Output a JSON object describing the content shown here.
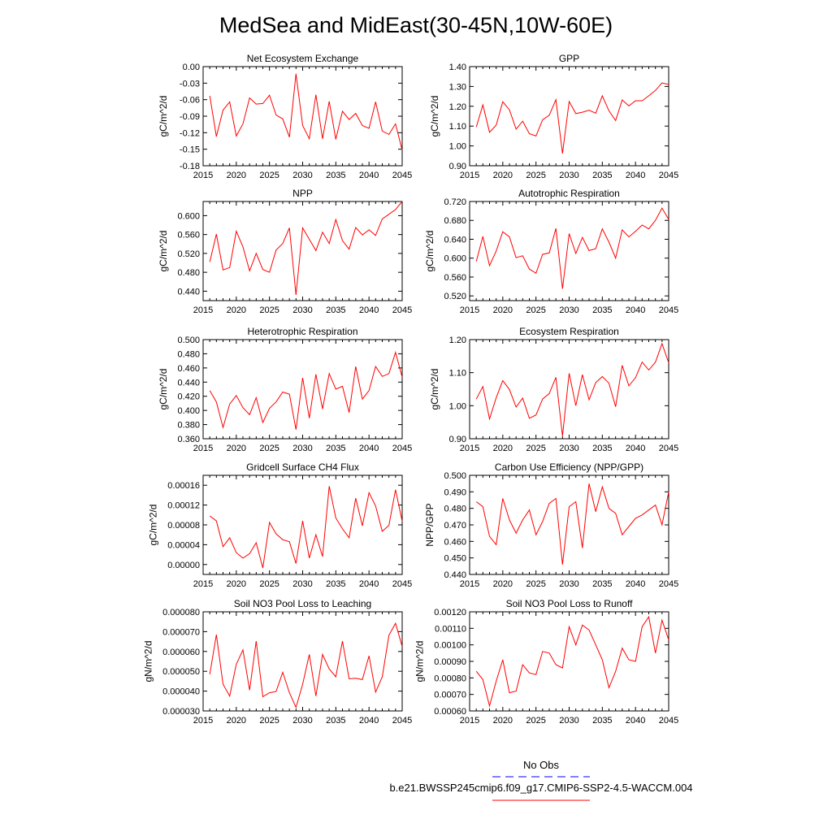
{
  "figure": {
    "title": "MedSea and MidEast(30-45N,10W-60E)"
  },
  "legend": {
    "entries": [
      {
        "label": "No Obs",
        "color": "#0000ff",
        "dashed": true
      },
      {
        "label": "b.e21.BWSSP245cmip6.f09_g17.CMIP6-SSP2-4.5-WACCM.004",
        "color": "#ff0000",
        "dashed": false
      }
    ]
  },
  "chart_data": [
    {
      "type": "line",
      "title": "Net Ecosystem Exchange",
      "xlabel": "",
      "ylabel": "gC/m^2/d",
      "xlim": [
        2015,
        2045
      ],
      "ylim": [
        -0.18,
        0.0
      ],
      "xticks": [
        "2015",
        "2020",
        "2025",
        "2030",
        "2035",
        "2040",
        "2045"
      ],
      "yticks": [
        "-0.18",
        "-0.15",
        "-0.12",
        "-0.09",
        "-0.06",
        "-0.03",
        "0.00"
      ],
      "x": [
        2016,
        2017,
        2018,
        2019,
        2020,
        2021,
        2022,
        2023,
        2024,
        2025,
        2026,
        2027,
        2028,
        2029,
        2030,
        2031,
        2032,
        2033,
        2034,
        2035,
        2036,
        2037,
        2038,
        2039,
        2040,
        2041,
        2042,
        2043,
        2044,
        2045
      ],
      "series": [
        {
          "color": "#ff0000",
          "values": [
            -0.053,
            -0.127,
            -0.079,
            -0.064,
            -0.126,
            -0.104,
            -0.057,
            -0.068,
            -0.067,
            -0.052,
            -0.088,
            -0.095,
            -0.128,
            -0.013,
            -0.107,
            -0.131,
            -0.051,
            -0.131,
            -0.063,
            -0.132,
            -0.081,
            -0.096,
            -0.085,
            -0.107,
            -0.112,
            -0.064,
            -0.117,
            -0.123,
            -0.104,
            -0.152
          ]
        }
      ]
    },
    {
      "type": "line",
      "title": "GPP",
      "xlabel": "",
      "ylabel": "gC/m^2/d",
      "xlim": [
        2015,
        2045
      ],
      "ylim": [
        0.9,
        1.4
      ],
      "xticks": [
        "2015",
        "2020",
        "2025",
        "2030",
        "2035",
        "2040",
        "2045"
      ],
      "yticks": [
        "0.90",
        "1.00",
        "1.10",
        "1.20",
        "1.30",
        "1.40"
      ],
      "x": [
        2016,
        2017,
        2018,
        2019,
        2020,
        2021,
        2022,
        2023,
        2024,
        2025,
        2026,
        2027,
        2028,
        2029,
        2030,
        2031,
        2032,
        2033,
        2034,
        2035,
        2036,
        2037,
        2038,
        2039,
        2040,
        2041,
        2042,
        2043,
        2044,
        2045
      ],
      "series": [
        {
          "color": "#ff0000",
          "values": [
            1.095,
            1.207,
            1.069,
            1.105,
            1.223,
            1.182,
            1.085,
            1.125,
            1.062,
            1.05,
            1.132,
            1.155,
            1.233,
            0.962,
            1.224,
            1.163,
            1.17,
            1.18,
            1.165,
            1.253,
            1.177,
            1.128,
            1.232,
            1.202,
            1.228,
            1.228,
            1.253,
            1.28,
            1.318,
            1.31
          ]
        }
      ]
    },
    {
      "type": "line",
      "title": "NPP",
      "xlabel": "",
      "ylabel": "gC/m^2/d",
      "xlim": [
        2015,
        2045
      ],
      "ylim": [
        0.42,
        0.63
      ],
      "xticks": [
        "2015",
        "2020",
        "2025",
        "2030",
        "2035",
        "2040",
        "2045"
      ],
      "yticks": [
        "0.440",
        "0.480",
        "0.520",
        "0.560",
        "0.600"
      ],
      "x": [
        2016,
        2017,
        2018,
        2019,
        2020,
        2021,
        2022,
        2023,
        2024,
        2025,
        2026,
        2027,
        2028,
        2029,
        2030,
        2031,
        2032,
        2033,
        2034,
        2035,
        2036,
        2037,
        2038,
        2039,
        2040,
        2041,
        2042,
        2043,
        2044,
        2045
      ],
      "series": [
        {
          "color": "#ff0000",
          "values": [
            0.502,
            0.561,
            0.485,
            0.49,
            0.567,
            0.534,
            0.483,
            0.52,
            0.486,
            0.48,
            0.527,
            0.541,
            0.574,
            0.432,
            0.574,
            0.55,
            0.526,
            0.565,
            0.541,
            0.592,
            0.547,
            0.529,
            0.575,
            0.559,
            0.57,
            0.558,
            0.593,
            0.603,
            0.613,
            0.631
          ]
        }
      ]
    },
    {
      "type": "line",
      "title": "Autotrophic Respiration",
      "xlabel": "",
      "ylabel": "gC/m^2/d",
      "xlim": [
        2015,
        2045
      ],
      "ylim": [
        0.51,
        0.72
      ],
      "xticks": [
        "2015",
        "2020",
        "2025",
        "2030",
        "2035",
        "2040",
        "2045"
      ],
      "yticks": [
        "0.520",
        "0.560",
        "0.600",
        "0.640",
        "0.680",
        "0.720"
      ],
      "x": [
        2016,
        2017,
        2018,
        2019,
        2020,
        2021,
        2022,
        2023,
        2024,
        2025,
        2026,
        2027,
        2028,
        2029,
        2030,
        2031,
        2032,
        2033,
        2034,
        2035,
        2036,
        2037,
        2038,
        2039,
        2040,
        2041,
        2042,
        2043,
        2044,
        2045
      ],
      "series": [
        {
          "color": "#ff0000",
          "values": [
            0.593,
            0.646,
            0.584,
            0.615,
            0.656,
            0.645,
            0.601,
            0.605,
            0.577,
            0.568,
            0.608,
            0.611,
            0.663,
            0.535,
            0.652,
            0.61,
            0.644,
            0.616,
            0.62,
            0.662,
            0.634,
            0.6,
            0.66,
            0.645,
            0.657,
            0.67,
            0.662,
            0.68,
            0.706,
            0.682
          ]
        }
      ]
    },
    {
      "type": "line",
      "title": "Heterotrophic Respiration",
      "xlabel": "",
      "ylabel": "gC/m^2/d",
      "xlim": [
        2015,
        2045
      ],
      "ylim": [
        0.36,
        0.5
      ],
      "xticks": [
        "2015",
        "2020",
        "2025",
        "2030",
        "2035",
        "2040",
        "2045"
      ],
      "yticks": [
        "0.360",
        "0.380",
        "0.400",
        "0.420",
        "0.440",
        "0.460",
        "0.480",
        "0.500"
      ],
      "x": [
        2016,
        2017,
        2018,
        2019,
        2020,
        2021,
        2022,
        2023,
        2024,
        2025,
        2026,
        2027,
        2028,
        2029,
        2030,
        2031,
        2032,
        2033,
        2034,
        2035,
        2036,
        2037,
        2038,
        2039,
        2040,
        2041,
        2042,
        2043,
        2044,
        2045
      ],
      "series": [
        {
          "color": "#ff0000",
          "values": [
            0.428,
            0.412,
            0.376,
            0.409,
            0.421,
            0.404,
            0.394,
            0.418,
            0.383,
            0.403,
            0.412,
            0.426,
            0.423,
            0.373,
            0.446,
            0.389,
            0.451,
            0.402,
            0.452,
            0.43,
            0.434,
            0.397,
            0.462,
            0.416,
            0.428,
            0.462,
            0.448,
            0.452,
            0.482,
            0.447
          ]
        }
      ]
    },
    {
      "type": "line",
      "title": "Ecosystem Respiration",
      "xlabel": "",
      "ylabel": "gC/m^2/d",
      "xlim": [
        2015,
        2045
      ],
      "ylim": [
        0.9,
        1.2
      ],
      "xticks": [
        "2015",
        "2020",
        "2025",
        "2030",
        "2035",
        "2040",
        "2045"
      ],
      "yticks": [
        "0.90",
        "1.00",
        "1.10",
        "1.20"
      ],
      "x": [
        2016,
        2017,
        2018,
        2019,
        2020,
        2021,
        2022,
        2023,
        2024,
        2025,
        2026,
        2027,
        2028,
        2029,
        2030,
        2031,
        2032,
        2033,
        2034,
        2035,
        2036,
        2037,
        2038,
        2039,
        2040,
        2041,
        2042,
        2043,
        2044,
        2045
      ],
      "series": [
        {
          "color": "#ff0000",
          "values": [
            1.02,
            1.058,
            0.96,
            1.024,
            1.076,
            1.049,
            0.996,
            1.023,
            0.962,
            0.972,
            1.02,
            1.037,
            1.086,
            0.908,
            1.098,
            1.0,
            1.094,
            1.018,
            1.07,
            1.088,
            1.068,
            0.997,
            1.122,
            1.06,
            1.085,
            1.132,
            1.108,
            1.132,
            1.188,
            1.13
          ]
        }
      ]
    },
    {
      "type": "line",
      "title": "Gridcell Surface CH4 Flux",
      "xlabel": "",
      "ylabel": "gC/m^2/d",
      "xlim": [
        2015,
        2045
      ],
      "ylim": [
        -2e-05,
        0.00018
      ],
      "xticks": [
        "2015",
        "2020",
        "2025",
        "2030",
        "2035",
        "2040",
        "2045"
      ],
      "yticks": [
        "0.00000",
        "0.00004",
        "0.00008",
        "0.00012",
        "0.00016"
      ],
      "x": [
        2016,
        2017,
        2018,
        2019,
        2020,
        2021,
        2022,
        2023,
        2024,
        2025,
        2026,
        2027,
        2028,
        2029,
        2030,
        2031,
        2032,
        2033,
        2034,
        2035,
        2036,
        2037,
        2038,
        2039,
        2040,
        2041,
        2042,
        2043,
        2044,
        2045
      ],
      "series": [
        {
          "color": "#ff0000",
          "values": [
            9.8e-05,
            8.8e-05,
            3.6e-05,
            5.4e-05,
            2.4e-05,
            1.3e-05,
            2.2e-05,
            4.4e-05,
            -7e-06,
            8.5e-05,
            6.2e-05,
            5e-05,
            4.6e-05,
            2e-06,
            8.8e-05,
            1.3e-05,
            6e-05,
            1.6e-05,
            0.000158,
            9.4e-05,
            7.2e-05,
            5.4e-05,
            0.000134,
            7.8e-05,
            0.000145,
            0.000118,
            6.7e-05,
            7.9e-05,
            0.000151,
            8.7e-05
          ]
        }
      ]
    },
    {
      "type": "line",
      "title": "Carbon Use Efficiency (NPP/GPP)",
      "xlabel": "",
      "ylabel": "NPP/GPP",
      "xlim": [
        2015,
        2045
      ],
      "ylim": [
        0.44,
        0.5
      ],
      "xticks": [
        "2015",
        "2020",
        "2025",
        "2030",
        "2035",
        "2040",
        "2045"
      ],
      "yticks": [
        "0.440",
        "0.450",
        "0.460",
        "0.470",
        "0.480",
        "0.490",
        "0.500"
      ],
      "x": [
        2016,
        2017,
        2018,
        2019,
        2020,
        2021,
        2022,
        2023,
        2024,
        2025,
        2026,
        2027,
        2028,
        2029,
        2030,
        2031,
        2032,
        2033,
        2034,
        2035,
        2036,
        2037,
        2038,
        2039,
        2040,
        2041,
        2042,
        2043,
        2044,
        2045
      ],
      "series": [
        {
          "color": "#ff0000",
          "values": [
            0.484,
            0.481,
            0.463,
            0.458,
            0.486,
            0.473,
            0.465,
            0.473,
            0.479,
            0.464,
            0.472,
            0.483,
            0.486,
            0.446,
            0.481,
            0.484,
            0.456,
            0.495,
            0.478,
            0.493,
            0.48,
            0.477,
            0.464,
            0.469,
            0.474,
            0.476,
            0.479,
            0.482,
            0.47,
            0.49
          ]
        }
      ]
    },
    {
      "type": "line",
      "title": "Soil NO3 Pool Loss to Leaching",
      "xlabel": "",
      "ylabel": "gN/m^2/d",
      "xlim": [
        2015,
        2045
      ],
      "ylim": [
        3e-05,
        8e-05
      ],
      "xticks": [
        "2015",
        "2020",
        "2025",
        "2030",
        "2035",
        "2040",
        "2045"
      ],
      "yticks": [
        "0.000030",
        "0.000040",
        "0.000050",
        "0.000060",
        "0.000070",
        "0.000080"
      ],
      "x": [
        2016,
        2017,
        2018,
        2019,
        2020,
        2021,
        2022,
        2023,
        2024,
        2025,
        2026,
        2027,
        2028,
        2029,
        2030,
        2031,
        2032,
        2033,
        2034,
        2035,
        2036,
        2037,
        2038,
        2039,
        2040,
        2041,
        2042,
        2043,
        2044,
        2045
      ],
      "series": [
        {
          "color": "#ff0000",
          "values": [
            4.85e-05,
            6.85e-05,
            4.35e-05,
            3.75e-05,
            5.35e-05,
            6.08e-05,
            4.05e-05,
            6.52e-05,
            3.72e-05,
            3.92e-05,
            3.98e-05,
            4.95e-05,
            3.92e-05,
            3.18e-05,
            4.35e-05,
            5.85e-05,
            3.75e-05,
            5.85e-05,
            5.12e-05,
            4.72e-05,
            6.52e-05,
            4.62e-05,
            4.65e-05,
            4.58e-05,
            5.78e-05,
            3.95e-05,
            4.72e-05,
            6.82e-05,
            7.42e-05,
            6.25e-05
          ]
        }
      ]
    },
    {
      "type": "line",
      "title": "Soil NO3 Pool Loss to Runoff",
      "xlabel": "",
      "ylabel": "gN/m^2/d",
      "xlim": [
        2015,
        2045
      ],
      "ylim": [
        0.0006,
        0.0012
      ],
      "xticks": [
        "2015",
        "2020",
        "2025",
        "2030",
        "2035",
        "2040",
        "2045"
      ],
      "yticks": [
        "0.00060",
        "0.00070",
        "0.00080",
        "0.00090",
        "0.00100",
        "0.00110",
        "0.00120"
      ],
      "x": [
        2016,
        2017,
        2018,
        2019,
        2020,
        2021,
        2022,
        2023,
        2024,
        2025,
        2026,
        2027,
        2028,
        2029,
        2030,
        2031,
        2032,
        2033,
        2034,
        2035,
        2036,
        2037,
        2038,
        2039,
        2040,
        2041,
        2042,
        2043,
        2044,
        2045
      ],
      "series": [
        {
          "color": "#ff0000",
          "values": [
            0.00084,
            0.00079,
            0.00063,
            0.00078,
            0.00091,
            0.00071,
            0.00072,
            0.00088,
            0.00083,
            0.00082,
            0.00096,
            0.00095,
            0.00088,
            0.00086,
            0.00111,
            0.001,
            0.00112,
            0.00109,
            0.001,
            0.00091,
            0.00074,
            0.00084,
            0.00098,
            0.00091,
            0.0009,
            0.00111,
            0.00117,
            0.00095,
            0.00115,
            0.00103
          ]
        }
      ]
    }
  ]
}
